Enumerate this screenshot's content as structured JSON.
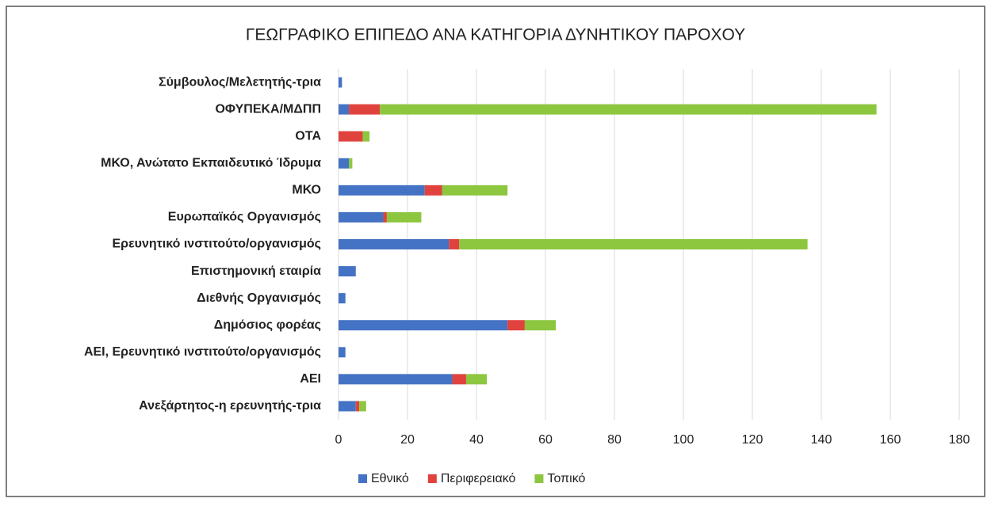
{
  "chart_data": {
    "type": "stacked-barh",
    "title": "ΓΕΩΓΡΑΦΙΚΟ ΕΠΙΠΕΔΟ ΑΝΑ ΚΑΤΗΓΟΡΙΑ ΔΥΝΗΤΙΚΟΥ ΠΑΡΟΧΟΥ",
    "categories": [
      "Σύμβουλος/Μελετητής-τρια",
      "ΟΦΥΠΕΚΑ/ΜΔΠΠ",
      "ΟΤΑ",
      "ΜΚΟ, Ανώτατο Εκπαιδευτικό Ίδρυμα",
      "ΜΚΟ",
      "Ευρωπαϊκός Οργανισμός",
      "Ερευνητικό ινστιτούτο/οργανισμός",
      "Επιστημονική εταιρία",
      "Διεθνής Οργανισμός",
      "Δημόσιος φορέας",
      "ΑΕΙ, Ερευνητικό ινστιτούτο/οργανισμός",
      "ΑΕΙ",
      "Ανεξάρτητος-η ερευνητής-τρια"
    ],
    "series": [
      {
        "name": "Εθνικό",
        "color": "#4472c4",
        "values": [
          1,
          3,
          0,
          3,
          25,
          13,
          32,
          5,
          2,
          49,
          2,
          33,
          5
        ]
      },
      {
        "name": "Περιφερειακό",
        "color": "#e0423e",
        "values": [
          0,
          9,
          7,
          0,
          5,
          1,
          3,
          0,
          0,
          5,
          0,
          4,
          1
        ]
      },
      {
        "name": "Τοπικό",
        "color": "#8dc63f",
        "values": [
          0,
          144,
          2,
          1,
          19,
          10,
          101,
          0,
          0,
          9,
          0,
          6,
          2
        ]
      }
    ],
    "xlim": [
      0,
      180
    ],
    "xticks": [
      0,
      20,
      40,
      60,
      80,
      100,
      120,
      140,
      160,
      180
    ],
    "grid": true,
    "legend": "bottom"
  }
}
